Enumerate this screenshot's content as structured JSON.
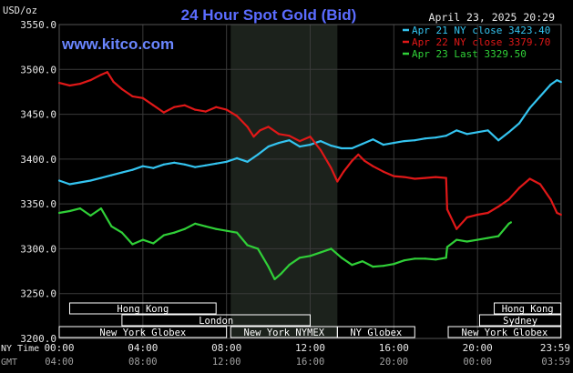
{
  "brand": "www.kitco.com",
  "colors": {
    "background": "#000000",
    "grid": "#3a3a3a",
    "title": "#5b6cff",
    "brand": "#6a86ff",
    "axis_text": "#e8e8e8",
    "apr21": "#34c4f0",
    "apr22": "#e01818",
    "apr23": "#30d038",
    "session_band": "#ffffff",
    "session_text": "#ffffff",
    "nymex_shade": "#1c221c"
  },
  "chart_data": {
    "type": "line",
    "title": "24 Hour Spot Gold (Bid)",
    "date": "April 23, 2025 20:29",
    "ylabel": "USD/oz",
    "ylim": [
      3200,
      3550
    ],
    "y_ticks": [
      "3550.0",
      "3500.0",
      "3450.0",
      "3400.0",
      "3350.0",
      "3300.0",
      "3250.0",
      "3200.0"
    ],
    "xlim": [
      0,
      24
    ],
    "x_axis_rows": [
      {
        "label": "NY Time",
        "ticks": [
          "00:00",
          "04:00",
          "08:00",
          "12:00",
          "16:00",
          "20:00",
          "23:59"
        ]
      },
      {
        "label": "GMT",
        "ticks": [
          "04:00",
          "08:00",
          "12:00",
          "16:00",
          "20:00",
          "00:00",
          "03:59"
        ]
      }
    ],
    "legend_position": "top-right",
    "series": [
      {
        "name": "Apr 21 NY close 3423.40",
        "color": "#34c4f0",
        "points": [
          [
            0,
            3376
          ],
          [
            0.5,
            3372
          ],
          [
            1,
            3374
          ],
          [
            1.5,
            3376
          ],
          [
            2,
            3379
          ],
          [
            2.5,
            3382
          ],
          [
            3,
            3385
          ],
          [
            3.5,
            3388
          ],
          [
            4,
            3392
          ],
          [
            4.5,
            3390
          ],
          [
            5,
            3394
          ],
          [
            5.5,
            3396
          ],
          [
            6,
            3394
          ],
          [
            6.5,
            3391
          ],
          [
            7,
            3393
          ],
          [
            7.5,
            3395
          ],
          [
            8,
            3397
          ],
          [
            8.5,
            3401
          ],
          [
            9,
            3397
          ],
          [
            9.5,
            3405
          ],
          [
            10,
            3414
          ],
          [
            10.5,
            3418
          ],
          [
            11,
            3421
          ],
          [
            11.5,
            3414
          ],
          [
            12,
            3416
          ],
          [
            12.5,
            3420
          ],
          [
            13,
            3415
          ],
          [
            13.5,
            3412
          ],
          [
            14,
            3412
          ],
          [
            14.5,
            3417
          ],
          [
            15,
            3422
          ],
          [
            15.5,
            3416
          ],
          [
            16,
            3418
          ],
          [
            16.5,
            3420
          ],
          [
            17,
            3421
          ],
          [
            17.5,
            3423
          ],
          [
            18,
            3424
          ],
          [
            18.5,
            3426
          ],
          [
            19,
            3432
          ],
          [
            19.5,
            3428
          ],
          [
            20,
            3430
          ],
          [
            20.5,
            3432
          ],
          [
            21,
            3421
          ],
          [
            21.5,
            3430
          ],
          [
            22,
            3440
          ],
          [
            22.5,
            3457
          ],
          [
            23,
            3470
          ],
          [
            23.5,
            3483
          ],
          [
            23.8,
            3488
          ],
          [
            23.99,
            3486
          ]
        ]
      },
      {
        "name": "Apr 22 NY close 3379.70",
        "color": "#e01818",
        "points": [
          [
            0,
            3485
          ],
          [
            0.5,
            3482
          ],
          [
            1,
            3484
          ],
          [
            1.5,
            3488
          ],
          [
            2,
            3494
          ],
          [
            2.3,
            3497
          ],
          [
            2.6,
            3486
          ],
          [
            3,
            3478
          ],
          [
            3.5,
            3470
          ],
          [
            4,
            3468
          ],
          [
            4.5,
            3460
          ],
          [
            5,
            3452
          ],
          [
            5.5,
            3458
          ],
          [
            6,
            3460
          ],
          [
            6.5,
            3455
          ],
          [
            7,
            3453
          ],
          [
            7.5,
            3458
          ],
          [
            8,
            3455
          ],
          [
            8.5,
            3448
          ],
          [
            9,
            3436
          ],
          [
            9.3,
            3425
          ],
          [
            9.6,
            3432
          ],
          [
            10,
            3436
          ],
          [
            10.5,
            3428
          ],
          [
            11,
            3426
          ],
          [
            11.5,
            3420
          ],
          [
            12,
            3425
          ],
          [
            12.5,
            3410
          ],
          [
            13,
            3390
          ],
          [
            13.3,
            3375
          ],
          [
            13.6,
            3386
          ],
          [
            14,
            3398
          ],
          [
            14.3,
            3405
          ],
          [
            14.6,
            3398
          ],
          [
            15,
            3392
          ],
          [
            15.5,
            3386
          ],
          [
            16,
            3381
          ],
          [
            16.5,
            3380
          ],
          [
            17,
            3378
          ],
          [
            17.5,
            3379
          ],
          [
            18,
            3380
          ],
          [
            18.5,
            3379
          ],
          [
            18.55,
            3344
          ],
          [
            19,
            3322
          ],
          [
            19.5,
            3335
          ],
          [
            20,
            3338
          ],
          [
            20.5,
            3340
          ],
          [
            21,
            3347
          ],
          [
            21.5,
            3355
          ],
          [
            22,
            3368
          ],
          [
            22.5,
            3378
          ],
          [
            23,
            3372
          ],
          [
            23.5,
            3355
          ],
          [
            23.8,
            3340
          ],
          [
            23.99,
            3338
          ]
        ]
      },
      {
        "name": "Apr 23 Last 3329.50",
        "color": "#30d038",
        "points": [
          [
            0,
            3340
          ],
          [
            0.5,
            3342
          ],
          [
            1,
            3345
          ],
          [
            1.5,
            3337
          ],
          [
            2,
            3345
          ],
          [
            2.5,
            3325
          ],
          [
            3,
            3318
          ],
          [
            3.5,
            3305
          ],
          [
            4,
            3310
          ],
          [
            4.5,
            3306
          ],
          [
            5,
            3315
          ],
          [
            5.5,
            3318
          ],
          [
            6,
            3322
          ],
          [
            6.5,
            3328
          ],
          [
            7,
            3325
          ],
          [
            7.5,
            3322
          ],
          [
            8,
            3320
          ],
          [
            8.5,
            3318
          ],
          [
            9,
            3304
          ],
          [
            9.5,
            3300
          ],
          [
            10,
            3280
          ],
          [
            10.3,
            3266
          ],
          [
            10.6,
            3272
          ],
          [
            11,
            3282
          ],
          [
            11.5,
            3290
          ],
          [
            12,
            3292
          ],
          [
            12.5,
            3296
          ],
          [
            13,
            3300
          ],
          [
            13.5,
            3290
          ],
          [
            14,
            3282
          ],
          [
            14.5,
            3286
          ],
          [
            15,
            3280
          ],
          [
            15.5,
            3281
          ],
          [
            16,
            3283
          ],
          [
            16.5,
            3287
          ],
          [
            17,
            3289
          ],
          [
            17.5,
            3289
          ],
          [
            18,
            3288
          ],
          [
            18.5,
            3290
          ],
          [
            18.55,
            3302
          ],
          [
            19,
            3310
          ],
          [
            19.5,
            3308
          ],
          [
            20,
            3310
          ],
          [
            20.5,
            3312
          ],
          [
            21,
            3314
          ],
          [
            21.5,
            3328
          ],
          [
            21.6,
            3329.5
          ]
        ]
      }
    ],
    "market_sessions": [
      {
        "label": "Hong Kong",
        "row": 0,
        "start": 0.5,
        "end": 7.5
      },
      {
        "label": "Hong Kong",
        "row": 0,
        "start": 20.8,
        "end": 23.99
      },
      {
        "label": "London",
        "row": 1,
        "start": 3,
        "end": 12
      },
      {
        "label": "Sydney",
        "row": 1,
        "start": 20.1,
        "end": 23.99
      },
      {
        "label": "New York Globex",
        "row": 2,
        "start": 0,
        "end": 8
      },
      {
        "label": "New York NYMEX",
        "row": 2,
        "start": 8.2,
        "end": 13.3
      },
      {
        "label": "NY Globex",
        "row": 2,
        "start": 13.3,
        "end": 17
      },
      {
        "label": "New York Globex",
        "row": 2,
        "start": 18.6,
        "end": 23.99
      }
    ],
    "nymex_shade": [
      8.2,
      13.3
    ]
  }
}
